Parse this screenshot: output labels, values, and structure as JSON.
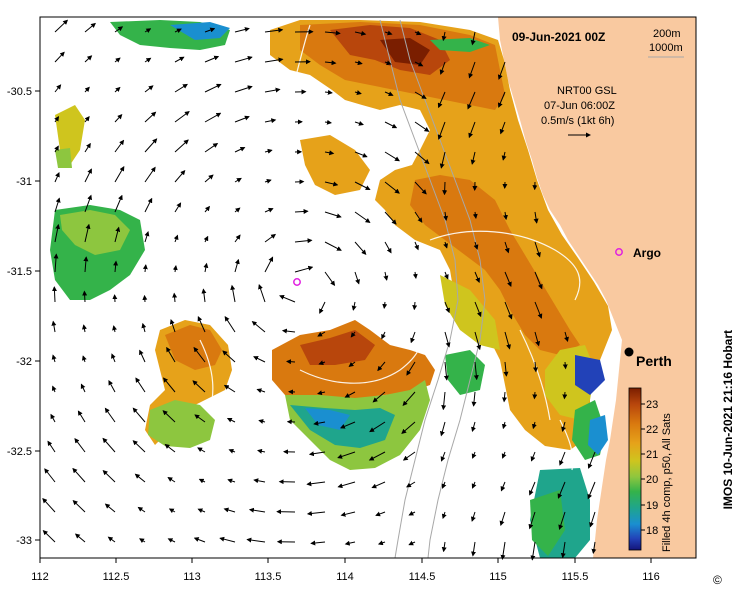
{
  "header": {
    "date": "09-Jun-2021 00Z",
    "depth_legend": [
      "200m",
      "1000m"
    ],
    "current_info": [
      "NRT00 GSL",
      "07-Jun 06:00Z",
      "0.5m/s (1kt 6h)"
    ]
  },
  "places": {
    "argo": "Argo",
    "city": "Perth"
  },
  "axes": {
    "x_ticks": [
      "112",
      "112.5",
      "113",
      "113.5",
      "114",
      "114.5",
      "115",
      "115.5",
      "116"
    ],
    "y_ticks": [
      "-30.5",
      "-31",
      "-31.5",
      "-32",
      "-32.5",
      "-33"
    ]
  },
  "colorbar": {
    "label": "Filled 4h comp, p50, All Sats",
    "ticks": [
      "23",
      "22",
      "21",
      "20",
      "19",
      "18"
    ],
    "colors": [
      "#7a1e00",
      "#b8460c",
      "#d9790f",
      "#e6a21a",
      "#cfc51e",
      "#8dc63f",
      "#34b34a",
      "#1fa58c",
      "#1a8fd0",
      "#2242b8",
      "#14147a"
    ]
  },
  "credit": "IMOS 10-Jun-2021 21:16 Hobart",
  "copyright": "©",
  "colors": {
    "land": "#f9c9a0",
    "argo_marker": "#e020e0"
  }
}
